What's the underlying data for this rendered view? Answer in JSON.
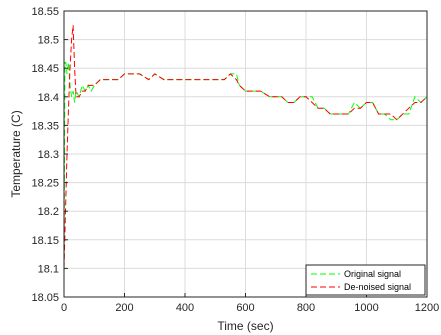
{
  "chart_data": {
    "type": "line",
    "title": "",
    "xlabel": "Time (sec)",
    "ylabel": "Temperature (C)",
    "xlim": [
      0,
      1200
    ],
    "ylim": [
      18.05,
      18.55
    ],
    "xticks": [
      "0",
      "200",
      "400",
      "600",
      "800",
      "1000",
      "1200"
    ],
    "yticks": [
      "18.05",
      "18.1",
      "18.15",
      "18.2",
      "18.25",
      "18.3",
      "18.35",
      "18.4",
      "18.45",
      "18.5",
      "18.55"
    ],
    "grid": true,
    "legend_position": "bottom-right",
    "series": [
      {
        "name": "Original signal",
        "color": "#00ff00",
        "style": "dashed",
        "x": [
          0,
          3,
          6,
          10,
          15,
          20,
          25,
          30,
          35,
          40,
          50,
          60,
          70,
          80,
          90,
          100,
          120,
          140,
          160,
          180,
          200,
          220,
          250,
          280,
          300,
          330,
          360,
          400,
          430,
          460,
          500,
          530,
          550,
          570,
          580,
          600,
          620,
          650,
          680,
          700,
          720,
          740,
          760,
          780,
          800,
          820,
          840,
          860,
          880,
          900,
          920,
          940,
          960,
          980,
          1000,
          1020,
          1040,
          1060,
          1080,
          1100,
          1120,
          1140,
          1160,
          1180,
          1200
        ],
        "y": [
          18.08,
          18.46,
          18.46,
          18.44,
          18.46,
          18.42,
          18.4,
          18.41,
          18.39,
          18.41,
          18.4,
          18.42,
          18.41,
          18.42,
          18.41,
          18.42,
          18.43,
          18.43,
          18.43,
          18.43,
          18.44,
          18.44,
          18.44,
          18.43,
          18.44,
          18.43,
          18.43,
          18.43,
          18.43,
          18.43,
          18.43,
          18.43,
          18.44,
          18.44,
          18.42,
          18.41,
          18.41,
          18.41,
          18.4,
          18.4,
          18.4,
          18.39,
          18.39,
          18.4,
          18.4,
          18.4,
          18.38,
          18.38,
          18.37,
          18.37,
          18.37,
          18.37,
          18.39,
          18.38,
          18.39,
          18.39,
          18.37,
          18.37,
          18.36,
          18.36,
          18.37,
          18.37,
          18.4,
          18.39,
          18.4
        ]
      },
      {
        "name": "De-noised signal",
        "color": "#ff0000",
        "style": "dashed",
        "x": [
          0,
          5,
          10,
          15,
          20,
          25,
          30,
          35,
          40,
          50,
          60,
          70,
          80,
          90,
          100,
          120,
          140,
          160,
          180,
          200,
          220,
          250,
          280,
          300,
          330,
          360,
          400,
          430,
          460,
          500,
          530,
          550,
          570,
          580,
          600,
          620,
          650,
          680,
          700,
          720,
          740,
          760,
          780,
          800,
          820,
          840,
          860,
          880,
          900,
          920,
          940,
          960,
          980,
          1000,
          1020,
          1040,
          1060,
          1080,
          1100,
          1120,
          1140,
          1160,
          1180,
          1200
        ],
        "y": [
          18.1,
          18.2,
          18.3,
          18.38,
          18.45,
          18.5,
          18.525,
          18.45,
          18.4,
          18.4,
          18.41,
          18.41,
          18.42,
          18.42,
          18.42,
          18.43,
          18.43,
          18.43,
          18.43,
          18.44,
          18.44,
          18.44,
          18.43,
          18.44,
          18.43,
          18.43,
          18.43,
          18.43,
          18.43,
          18.43,
          18.43,
          18.44,
          18.43,
          18.42,
          18.41,
          18.41,
          18.41,
          18.4,
          18.4,
          18.4,
          18.39,
          18.39,
          18.4,
          18.4,
          18.39,
          18.38,
          18.38,
          18.37,
          18.37,
          18.37,
          18.37,
          18.38,
          18.38,
          18.39,
          18.39,
          18.37,
          18.37,
          18.37,
          18.36,
          18.37,
          18.38,
          18.39,
          18.39,
          18.4
        ]
      }
    ]
  }
}
